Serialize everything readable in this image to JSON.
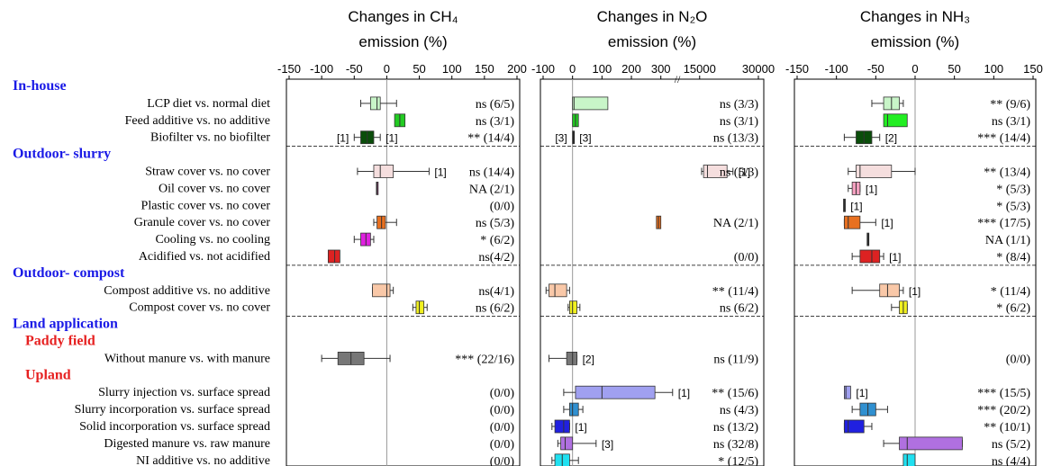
{
  "rows": [
    {
      "label": "In-house",
      "kind": "section"
    },
    {
      "label": "LCP diet vs. normal diet"
    },
    {
      "label": "Feed additive vs. no additive"
    },
    {
      "label": "Biofilter vs. no biofilter"
    },
    {
      "label": "Outdoor- slurry",
      "kind": "section"
    },
    {
      "label": "Straw cover vs. no cover"
    },
    {
      "label": "Oil cover vs. no cover"
    },
    {
      "label": "Plastic cover vs. no cover"
    },
    {
      "label": "Granule cover vs. no cover"
    },
    {
      "label": "Cooling vs. no cooling"
    },
    {
      "label": "Acidified vs. not acidified"
    },
    {
      "label": "Outdoor- compost",
      "kind": "section"
    },
    {
      "label": "Compost additive vs. no additive"
    },
    {
      "label": "Compost cover vs. no cover"
    },
    {
      "label": "Land application",
      "kind": "section"
    },
    {
      "label": "Paddy field",
      "kind": "subsection"
    },
    {
      "label": "Without manure vs. with manure"
    },
    {
      "label": "Upland",
      "kind": "subsection"
    },
    {
      "label": "Slurry injection vs. surface spread"
    },
    {
      "label": "Slurry incorporation vs. surface spread"
    },
    {
      "label": "Solid incorporation vs. surface spread"
    },
    {
      "label": "Digested manure vs. raw manure"
    },
    {
      "label": "NI additive vs. no additive"
    }
  ],
  "chart_data": [
    {
      "type": "box",
      "title": [
        "Changes in CH₄",
        "emission (%)"
      ],
      "xlim": [
        -150,
        200
      ],
      "xticks": [
        -150,
        -100,
        -50,
        0,
        50,
        100,
        150,
        200
      ],
      "refline": 0,
      "boxes": [
        null,
        {
          "whislo": -40,
          "q1": -25,
          "med": -15,
          "q3": -10,
          "whishi": 15,
          "color": "#c8f5c8"
        },
        {
          "q1": 12,
          "med": 20,
          "q3": 28,
          "color": "#22cc22"
        },
        {
          "whislo": -50,
          "q1": -40,
          "med": -30,
          "q3": -20,
          "whishi": -10,
          "color": "#0a4d0a",
          "note_left": "[1]",
          "note_right": "[1]"
        },
        null,
        {
          "whislo": -45,
          "q1": -20,
          "med": -10,
          "q3": 10,
          "whishi": 65,
          "color": "#f5dede",
          "note_right": "[1]"
        },
        {
          "q1": -16,
          "med": -15,
          "q3": -14,
          "color": "#a04080"
        },
        null,
        {
          "whislo": -20,
          "q1": -15,
          "med": -8,
          "q3": -2,
          "whishi": 15,
          "color": "#e87020"
        },
        {
          "whislo": -50,
          "q1": -40,
          "med": -32,
          "q3": -25,
          "whishi": -20,
          "color": "#e020e0"
        },
        {
          "q1": -90,
          "med": -80,
          "q3": -72,
          "color": "#dd2222"
        },
        null,
        {
          "whislo": -22,
          "q1": -22,
          "med": 0,
          "q3": 5,
          "whishi": 10,
          "color": "#f9c8a8"
        },
        {
          "whislo": 40,
          "q1": 45,
          "med": 50,
          "q3": 57,
          "whishi": 62,
          "color": "#f0f020"
        },
        null,
        null,
        {
          "whislo": -100,
          "q1": -75,
          "med": -55,
          "q3": -35,
          "whishi": 5,
          "color": "#777777"
        },
        null,
        null,
        null,
        null,
        null,
        null
      ],
      "annotations": [
        null,
        "ns (6/5)",
        "ns (3/1)",
        "** (14/4)",
        null,
        "ns (14/4)",
        "NA (2/1)",
        "(0/0)",
        "ns (5/3)",
        "* (6/2)",
        "ns(4/2)",
        null,
        "ns(4/1)",
        "ns (6/2)",
        null,
        null,
        "*** (22/16)",
        null,
        "(0/0)",
        "(0/0)",
        "(0/0)",
        "(0/0)",
        "(0/0)"
      ]
    },
    {
      "type": "box",
      "title": [
        "Changes in N₂O",
        "emission (%)"
      ],
      "xlim": [
        -100,
        30000
      ],
      "axis_break": [
        350,
        10000
      ],
      "xticks": [
        -100,
        0,
        100,
        200,
        300,
        15000,
        30000
      ],
      "refline": 0,
      "boxes": [
        null,
        {
          "q1": 0,
          "med": 5,
          "q3": 120,
          "color": "#c8f5c8"
        },
        {
          "q1": 0,
          "med": 10,
          "q3": 20,
          "color": "#22cc22"
        },
        {
          "q1": 0,
          "med": 2,
          "q3": 5,
          "color": "#000000",
          "note_left": "[3]",
          "note_right": "[3]"
        },
        null,
        {
          "whislo": 15500,
          "q1": 16000,
          "med": 17000,
          "q3": 22000,
          "whishi": 23500,
          "color": "#f5dede",
          "note_right": "[1]"
        },
        null,
        null,
        {
          "q1": 285,
          "med": 292,
          "q3": 300,
          "color": "#e87020"
        },
        null,
        null,
        null,
        {
          "whislo": -90,
          "q1": -80,
          "med": -60,
          "q3": -20,
          "whishi": -10,
          "color": "#f9c8a8"
        },
        {
          "whislo": -15,
          "q1": -10,
          "med": 0,
          "q3": 15,
          "whishi": 25,
          "color": "#f0f020"
        },
        null,
        null,
        {
          "whislo": -80,
          "q1": -20,
          "med": 0,
          "q3": 15,
          "whishi": 15,
          "color": "#777777",
          "note_right": "[2]"
        },
        null,
        {
          "whislo": -30,
          "q1": 10,
          "med": 100,
          "q3": 280,
          "whishi": 340,
          "color": "#a0a0f0",
          "note_right": "[1]"
        },
        {
          "whislo": -30,
          "q1": -10,
          "med": 0,
          "q3": 20,
          "whishi": 35,
          "color": "#3090d0"
        },
        {
          "whislo": -70,
          "q1": -60,
          "med": -30,
          "q3": -10,
          "whishi": -10,
          "color": "#2020e0",
          "note_right": "[1]"
        },
        {
          "whislo": -50,
          "q1": -40,
          "med": -25,
          "q3": 0,
          "whishi": 80,
          "color": "#b070e0",
          "note_right": "[3]"
        },
        {
          "whislo": -70,
          "q1": -60,
          "med": -35,
          "q3": -10,
          "whishi": 20,
          "color": "#20e0f0"
        }
      ],
      "annotations": [
        null,
        "ns (3/3)",
        "ns (3/1)",
        "ns (13/3)",
        null,
        "ns (5/3)",
        null,
        null,
        "NA (2/1)",
        null,
        "(0/0)",
        null,
        "** (11/4)",
        "ns (6/2)",
        null,
        null,
        "ns (11/9)",
        null,
        "** (15/6)",
        "ns (4/3)",
        "ns (13/2)",
        "ns (32/8)",
        "* (12/5)"
      ]
    },
    {
      "type": "box",
      "title": [
        "Changes in NH₃",
        "emission (%)"
      ],
      "xlim": [
        -150,
        150
      ],
      "xticks": [
        -150,
        -100,
        -50,
        0,
        50,
        100,
        150
      ],
      "refline": 0,
      "boxes": [
        null,
        {
          "whislo": -55,
          "q1": -40,
          "med": -30,
          "q3": -20,
          "whishi": -15,
          "color": "#c8f5c8"
        },
        {
          "q1": -40,
          "med": -35,
          "q3": -10,
          "color": "#22ee22"
        },
        {
          "whislo": -90,
          "q1": -75,
          "med": -65,
          "q3": -55,
          "whishi": -45,
          "color": "#0a4d0a",
          "note_right": "[2]"
        },
        null,
        {
          "whislo": -85,
          "q1": -75,
          "med": -70,
          "q3": -30,
          "whishi": 0,
          "color": "#f5dede"
        },
        {
          "whislo": -85,
          "q1": -80,
          "med": -75,
          "q3": -70,
          "whishi": -70,
          "color": "#f5a0c0",
          "note_right": "[1]"
        },
        {
          "q1": -91,
          "med": -90,
          "q3": -89,
          "color": "#000000",
          "note_right": "[1]"
        },
        {
          "whislo": -90,
          "q1": -90,
          "med": -85,
          "q3": -70,
          "whishi": -50,
          "color": "#e87020",
          "note_right": "[1]"
        },
        {
          "q1": -61,
          "med": -60,
          "q3": -59,
          "color": "#000000"
        },
        {
          "whislo": -80,
          "q1": -70,
          "med": -55,
          "q3": -45,
          "whishi": -40,
          "color": "#dd2222",
          "note_right": "[1]"
        },
        null,
        {
          "whislo": -80,
          "q1": -45,
          "med": -35,
          "q3": -20,
          "whishi": -15,
          "color": "#f9c8a8",
          "note_right": "[1]"
        },
        {
          "whislo": -30,
          "q1": -20,
          "med": -15,
          "q3": -10,
          "whishi": -10,
          "color": "#f0f020"
        },
        null,
        null,
        null,
        null,
        {
          "q1": -90,
          "med": -88,
          "q3": -82,
          "color": "#a0a0f0",
          "note_right": "[1]"
        },
        {
          "whislo": -80,
          "q1": -70,
          "med": -60,
          "q3": -50,
          "whishi": -35,
          "color": "#3090d0"
        },
        {
          "whislo": -90,
          "q1": -90,
          "med": -85,
          "q3": -65,
          "whishi": -55,
          "color": "#2020e0"
        },
        {
          "whislo": -40,
          "q1": -20,
          "med": -10,
          "q3": 60,
          "whishi": 60,
          "color": "#b070e0"
        },
        {
          "q1": -15,
          "med": -10,
          "q3": 0,
          "color": "#20e0f0"
        }
      ],
      "annotations": [
        null,
        "** (9/6)",
        "ns (3/1)",
        "*** (14/4)",
        null,
        "** (13/4)",
        "* (5/3)",
        "* (5/3)",
        "*** (17/5)",
        "NA (1/1)",
        "* (8/4)",
        null,
        "* (11/4)",
        "* (6/2)",
        null,
        null,
        "(0/0)",
        null,
        "*** (15/5)",
        "*** (20/2)",
        "** (10/1)",
        "ns (5/2)",
        "ns (4/4)"
      ]
    }
  ]
}
